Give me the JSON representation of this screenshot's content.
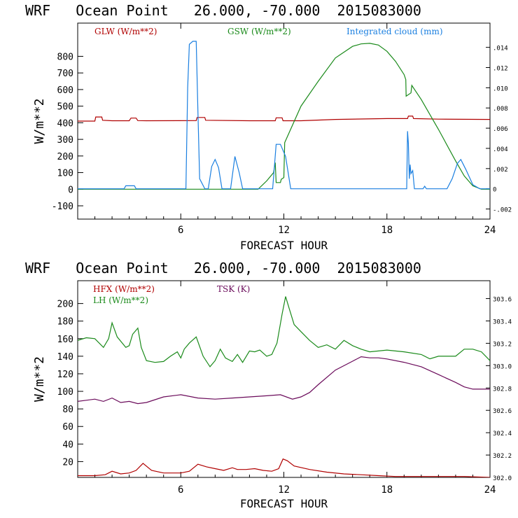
{
  "chart_data": [
    {
      "type": "line",
      "title": "WRF   Ocean Point   26.000, -70.000  2015083000",
      "xlabel": "FORECAST HOUR",
      "ylabel": "W/m**2",
      "xlim": [
        0,
        24
      ],
      "ylim": [
        -180,
        1000
      ],
      "x_ticks": [
        "6",
        "12",
        "18",
        "24"
      ],
      "y_ticks": [
        "-100",
        "0",
        "100",
        "200",
        "300",
        "400",
        "500",
        "600",
        "700",
        "800"
      ],
      "y2lim": [
        -0.003,
        0.0164
      ],
      "y2_ticks": [
        "-.002",
        "0",
        ".002",
        ".004",
        ".006",
        ".008",
        ".010",
        ".012",
        ".014"
      ],
      "legend": [
        "GLW (W/m**2)",
        "GSW (W/m**2)",
        "Integrated cloud (mm)"
      ],
      "colors": {
        "GLW": "#b00000",
        "GSW": "#1a8a1a",
        "cloud": "#1a7fe0"
      },
      "series": [
        {
          "name": "GLW (W/m**2)",
          "axis": "left",
          "x": [
            0,
            1.0,
            1.05,
            1.4,
            1.45,
            2,
            3,
            3.1,
            3.4,
            3.5,
            4,
            6.9,
            6.95,
            7.4,
            7.45,
            10,
            11.5,
            11.55,
            11.9,
            11.95,
            13,
            15,
            18,
            19.2,
            19.25,
            19.5,
            19.55,
            21,
            24
          ],
          "values": [
            410,
            410,
            435,
            435,
            415,
            412,
            412,
            428,
            428,
            413,
            412,
            413,
            432,
            432,
            415,
            412,
            412,
            430,
            430,
            412,
            412,
            420,
            425,
            425,
            440,
            440,
            425,
            422,
            420
          ]
        },
        {
          "name": "GSW (W/m**2)",
          "axis": "left",
          "x": [
            0,
            10.5,
            11,
            11.4,
            11.5,
            11.55,
            11.8,
            11.85,
            12,
            12.05,
            13,
            14,
            15,
            16,
            16.5,
            17,
            17.5,
            18,
            18.5,
            19.0,
            19.1,
            19.12,
            19.4,
            19.45,
            20,
            21,
            22,
            22.5,
            23,
            23.5,
            24
          ],
          "values": [
            0,
            0,
            50,
            100,
            160,
            40,
            40,
            60,
            70,
            280,
            500,
            650,
            790,
            860,
            875,
            878,
            868,
            830,
            770,
            690,
            660,
            560,
            580,
            625,
            540,
            360,
            170,
            80,
            20,
            0,
            0
          ]
        },
        {
          "name": "Integrated cloud (mm)",
          "axis": "right",
          "x": [
            0,
            2.7,
            2.8,
            3.3,
            3.4,
            6.3,
            6.4,
            6.5,
            6.7,
            6.9,
            7.0,
            7.1,
            7.4,
            7.6,
            7.8,
            8.0,
            8.2,
            8.4,
            8.6,
            8.9,
            9.15,
            9.4,
            9.6,
            11.35,
            11.55,
            11.8,
            12.1,
            12.4,
            19.15,
            19.2,
            19.25,
            19.3,
            19.35,
            19.4,
            19.5,
            19.55,
            19.6,
            20.1,
            20.2,
            20.3,
            21.5,
            21.8,
            22.1,
            22.3,
            22.6,
            23.0,
            23.4,
            24
          ],
          "values": [
            0,
            0,
            0.0003,
            0.0003,
            0,
            0,
            0.01,
            0.0143,
            0.0146,
            0.0146,
            0.0075,
            0.001,
            0,
            0,
            0.0022,
            0.0029,
            0.0021,
            0,
            0,
            0,
            0.0032,
            0.0016,
            0,
            0,
            0.0044,
            0.0044,
            0.0032,
            0,
            0,
            0.0057,
            0.0045,
            0.001,
            0.0024,
            0.0015,
            0.0018,
            0.0009,
            0,
            0,
            0.00025,
            0,
            0,
            0.001,
            0.0025,
            0.0029,
            0.0019,
            0.0004,
            0,
            0
          ]
        }
      ]
    },
    {
      "type": "line",
      "title": "WRF   Ocean Point   26.000, -70.000  2015083000",
      "xlabel": "FORECAST HOUR",
      "ylabel": "W/m**2",
      "xlim": [
        0,
        24
      ],
      "ylim": [
        2,
        226
      ],
      "x_ticks": [
        "6",
        "12",
        "18",
        "24"
      ],
      "y_ticks": [
        "20",
        "40",
        "60",
        "80",
        "100",
        "120",
        "140",
        "160",
        "180",
        "200"
      ],
      "y2lim": [
        302,
        303.76
      ],
      "y2_ticks": [
        "302.0",
        "302.2",
        "302.4",
        "302.6",
        "302.8",
        "303.0",
        "303.2",
        "303.4",
        "303.6"
      ],
      "legend": [
        "HFX (W/m**2)",
        "LH (W/m**2)",
        "TSK (K)"
      ],
      "colors": {
        "HFX": "#b00000",
        "LH": "#1a8a1a",
        "TSK": "#6a0a5a"
      },
      "series": [
        {
          "name": "HFX (W/m**2)",
          "axis": "left",
          "x": [
            0,
            1,
            1.6,
            2,
            2.5,
            3,
            3.4,
            3.8,
            4.3,
            5,
            6,
            6.5,
            7,
            7.5,
            8,
            8.5,
            9,
            9.3,
            9.8,
            10.3,
            10.8,
            11.3,
            11.7,
            11.95,
            12.2,
            12.6,
            13.5,
            14.5,
            15.5,
            16.5,
            17.5,
            18.5,
            19.5,
            20.5,
            21.5,
            22.5,
            24
          ],
          "values": [
            4,
            4,
            5,
            9,
            6,
            7,
            10,
            18,
            10,
            7,
            7,
            9,
            17,
            14,
            12,
            10,
            13,
            11,
            11,
            12,
            10,
            9,
            12,
            23,
            21,
            15,
            11,
            8,
            6,
            5,
            4,
            3,
            3,
            3,
            3,
            3,
            2
          ]
        },
        {
          "name": "LH (W/m**2)",
          "axis": "left",
          "x": [
            0,
            0.5,
            1,
            1.5,
            1.8,
            2,
            2.3,
            2.8,
            3,
            3.2,
            3.5,
            3.7,
            4,
            4.5,
            5,
            5.4,
            5.8,
            6,
            6.2,
            6.5,
            6.9,
            7.3,
            7.7,
            8,
            8.3,
            8.6,
            9,
            9.3,
            9.6,
            10,
            10.3,
            10.6,
            11,
            11.3,
            11.6,
            11.9,
            12.1,
            12.3,
            12.6,
            13,
            13.5,
            14,
            14.5,
            15,
            15.5,
            16,
            16.5,
            17,
            18,
            19,
            20,
            20.5,
            21,
            22,
            22.5,
            23,
            23.5,
            24
          ],
          "values": [
            158,
            161,
            160,
            150,
            160,
            178,
            162,
            150,
            152,
            165,
            172,
            150,
            135,
            133,
            134,
            140,
            145,
            138,
            148,
            155,
            162,
            140,
            128,
            135,
            148,
            138,
            134,
            142,
            133,
            146,
            145,
            147,
            140,
            142,
            155,
            188,
            208,
            195,
            176,
            168,
            158,
            150,
            153,
            148,
            158,
            152,
            148,
            145,
            147,
            145,
            142,
            137,
            140,
            140,
            148,
            148,
            145,
            135
          ]
        },
        {
          "name": "TSK (K)",
          "axis": "right",
          "x": [
            0,
            0.5,
            1,
            1.5,
            2,
            2.5,
            3,
            3.5,
            4,
            5,
            6,
            7,
            8,
            9,
            10,
            11,
            11.8,
            12.5,
            13,
            13.5,
            14,
            15,
            16,
            16.5,
            17,
            17.5,
            18,
            19,
            20,
            21,
            22,
            22.5,
            23,
            24
          ],
          "values": [
            302.68,
            302.69,
            302.7,
            302.68,
            302.71,
            302.67,
            302.68,
            302.66,
            302.67,
            302.72,
            302.74,
            302.71,
            302.7,
            302.71,
            302.72,
            302.73,
            302.74,
            302.7,
            302.72,
            302.76,
            302.83,
            302.96,
            303.04,
            303.08,
            303.07,
            303.07,
            303.06,
            303.03,
            302.99,
            302.92,
            302.85,
            302.81,
            302.79,
            302.79
          ]
        }
      ]
    }
  ]
}
